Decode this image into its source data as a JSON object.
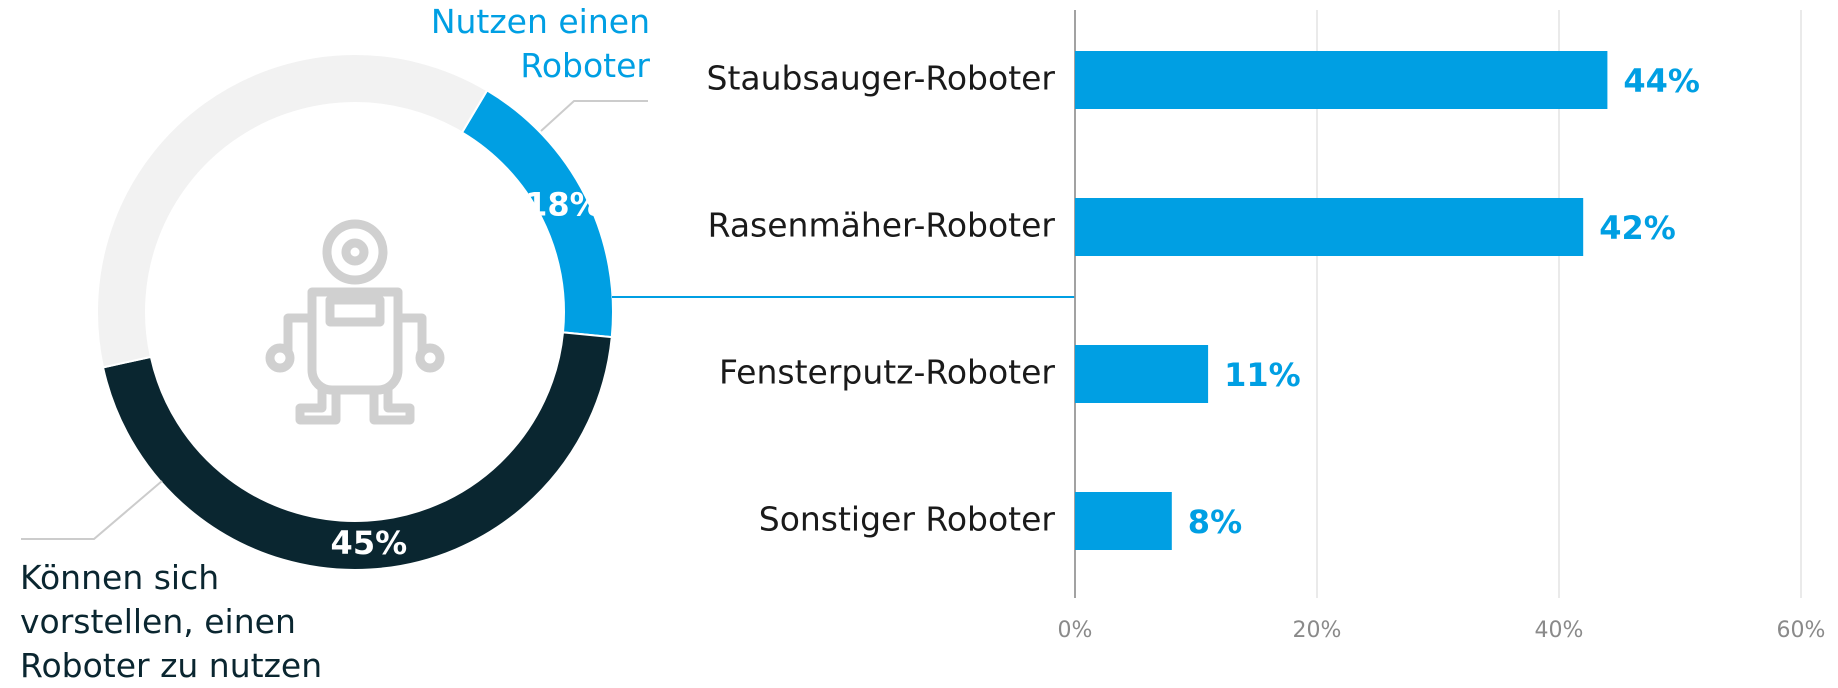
{
  "chart_data": [
    {
      "type": "pie",
      "categories": [
        "Nutzen einen Roboter",
        "Können sich vorstellen, einen Roboter zu nutzen",
        null
      ],
      "values": [
        18,
        45,
        37
      ],
      "value_labels": [
        "18%",
        "45%",
        null
      ],
      "colors": [
        "#009fe3",
        "#0a2630",
        "#f2f2f2"
      ]
    },
    {
      "type": "bar",
      "orientation": "horizontal",
      "categories": [
        "Staubsauger-Roboter",
        "Rasenmäher-Roboter",
        "Fensterputz-Roboter",
        "Sonstiger Roboter"
      ],
      "values": [
        44,
        42,
        11,
        8
      ],
      "value_labels": [
        "44%",
        "42%",
        "11%",
        "8%"
      ],
      "color": "#009fe3",
      "xlim": [
        0,
        60
      ],
      "xticks": [
        {
          "value": 0,
          "label": "0%"
        },
        {
          "value": 20,
          "label": "20%"
        },
        {
          "value": 40,
          "label": "40%"
        },
        {
          "value": 60,
          "label": "60%"
        }
      ],
      "grid": true
    }
  ]
}
